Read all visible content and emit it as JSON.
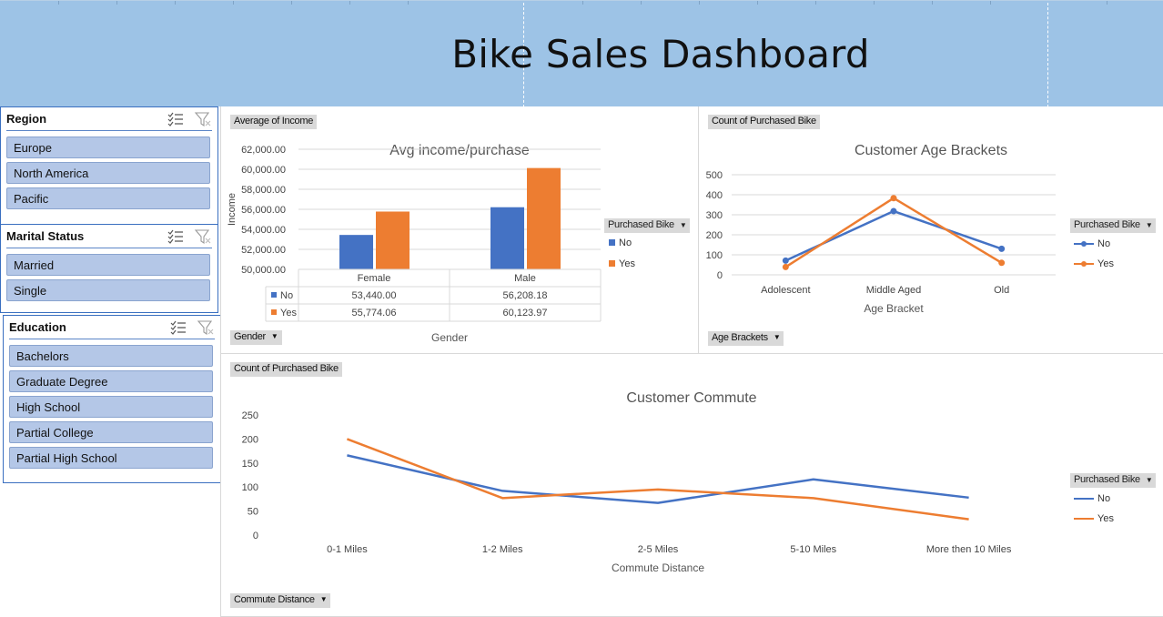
{
  "banner": {
    "title": "Bike Sales Dashboard"
  },
  "colors": {
    "banner": "#9dc3e6",
    "no": "#4472c4",
    "yes": "#ed7d31",
    "slicer_item": "#b4c7e7",
    "slicer_border": "#3a6fc0"
  },
  "slicers": {
    "region": {
      "title": "Region",
      "items": [
        "Europe",
        "North America",
        "Pacific"
      ]
    },
    "marital": {
      "title": "Marital Status",
      "items": [
        "Married",
        "Single"
      ]
    },
    "education": {
      "title": "Education",
      "items": [
        "Bachelors",
        "Graduate Degree",
        "High School",
        "Partial College",
        "Partial High School"
      ]
    },
    "icons": [
      "multi-select-icon",
      "clear-filter-icon"
    ]
  },
  "income_panel": {
    "value_field": "Average of Income",
    "axis_field": "Gender",
    "legend_title": "Purchased Bike",
    "legend": [
      "No",
      "Yes"
    ],
    "table_rows": [
      {
        "key": "No",
        "cells": [
          "53,440.00",
          "56,208.18"
        ]
      },
      {
        "key": "Yes",
        "cells": [
          "55,774.06",
          "60,123.97"
        ]
      }
    ]
  },
  "age_panel": {
    "value_field": "Count of Purchased Bike",
    "axis_field": "Age Brackets",
    "legend_title": "Purchased Bike",
    "legend": [
      "No",
      "Yes"
    ]
  },
  "commute_panel": {
    "value_field": "Count of Purchased Bike",
    "axis_field": "Commute Distance",
    "legend_title": "Purchased Bike",
    "legend": [
      "No",
      "Yes"
    ]
  },
  "chart_data": [
    {
      "type": "bar",
      "title": "Avg income/purchase",
      "xlabel": "Gender",
      "ylabel": "Income",
      "categories": [
        "Female",
        "Male"
      ],
      "ylim": [
        50000,
        62000
      ],
      "yticks": [
        "50,000.00",
        "52,000.00",
        "54,000.00",
        "56,000.00",
        "58,000.00",
        "60,000.00",
        "62,000.00"
      ],
      "series": [
        {
          "name": "No",
          "values": [
            53440.0,
            56208.18
          ]
        },
        {
          "name": "Yes",
          "values": [
            55774.06,
            60123.97
          ]
        }
      ],
      "data_table": true,
      "grid": true,
      "legend_position": "right"
    },
    {
      "type": "line",
      "title": "Customer Age Brackets",
      "xlabel": "Age Bracket",
      "ylabel": "",
      "categories": [
        "Adolescent",
        "Middle Aged",
        "Old"
      ],
      "ylim": [
        0,
        500
      ],
      "yticks": [
        "0",
        "100",
        "200",
        "300",
        "400",
        "500"
      ],
      "series": [
        {
          "name": "No",
          "values": [
            71,
            318,
            130
          ],
          "markers": true
        },
        {
          "name": "Yes",
          "values": [
            39,
            383,
            60
          ],
          "markers": true
        }
      ],
      "grid": true,
      "legend_position": "right"
    },
    {
      "type": "line",
      "title": "Customer Commute",
      "xlabel": "Commute Distance",
      "ylabel": "",
      "categories": [
        "0-1 Miles",
        "1-2 Miles",
        "2-5 Miles",
        "5-10 Miles",
        "More then 10 Miles"
      ],
      "ylim": [
        0,
        250
      ],
      "yticks": [
        "0",
        "50",
        "100",
        "150",
        "200",
        "250"
      ],
      "series": [
        {
          "name": "No",
          "values": [
            166,
            92,
            67,
            116,
            78
          ]
        },
        {
          "name": "Yes",
          "values": [
            200,
            77,
            95,
            77,
            33
          ]
        }
      ],
      "grid": false,
      "legend_position": "right"
    }
  ]
}
